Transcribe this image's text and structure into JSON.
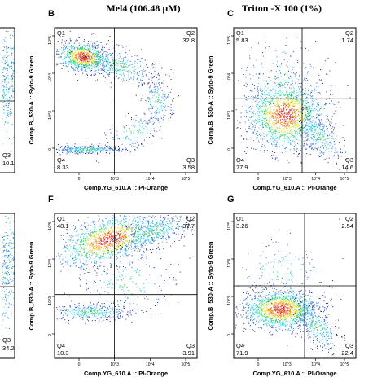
{
  "column_titles": [
    "Mel4  (106.48 µM)",
    "Triton -X 100 (1%)"
  ],
  "chart_data": [
    {
      "panel": "B",
      "type": "scatter",
      "xlabel": "Comp.YG_610.A :: PI-Orange",
      "ylabel": "Comp.B_530-A :: Syto-9 Green",
      "xlim": [
        "-10^3",
        "10^5"
      ],
      "ylim": [
        "-10^3",
        "10^5"
      ],
      "quadrants": {
        "Q1": "",
        "Q2": "32.8",
        "Q3": "3.58",
        "Q4": "8.33"
      },
      "yticks": [
        "10^5",
        "10^4",
        "10^3",
        "0"
      ],
      "xticks": [
        "0",
        "10^3",
        "10^4",
        "10^5"
      ]
    },
    {
      "panel": "C",
      "type": "scatter",
      "xlabel": "Comp.YG_610.A :: PI-Orange",
      "ylabel": "Comp.B_530-A :: Syto-9 Green",
      "xlim": [
        "-10^3",
        "10^5"
      ],
      "ylim": [
        "-10^3",
        "10^5"
      ],
      "quadrants": {
        "Q1": "5.83",
        "Q2": "1.74",
        "Q3": "14.6",
        "Q4": "77.9"
      },
      "yticks": [
        "10^5",
        "10^4",
        "10^3",
        "0"
      ],
      "xticks": [
        "0",
        "10^3",
        "10^4",
        "10^5"
      ]
    },
    {
      "panel": "F",
      "type": "scatter",
      "xlabel": "Comp.YG_610.A :: PI-Orange",
      "ylabel": "Comp.B_530-A :: Syto-9 Green",
      "xlim": [
        "-10^3",
        "10^5"
      ],
      "ylim": [
        "-10^3",
        "10^5"
      ],
      "quadrants": {
        "Q1": "48.1",
        "Q2": "37.7",
        "Q3": "3.91",
        "Q4": "10.3"
      },
      "yticks": [
        "10^5",
        "10^4",
        "10^3",
        "0"
      ],
      "xticks": [
        "0",
        "10^3",
        "10^4",
        "10^5"
      ]
    },
    {
      "panel": "G",
      "type": "scatter",
      "xlabel": "Comp.YG_610.A :: PI-Orange",
      "ylabel": "Comp.B_530-A :: Syto-9 Green",
      "xlim": [
        "-10^3",
        "10^5"
      ],
      "ylim": [
        "-10^3",
        "10^5"
      ],
      "quadrants": {
        "Q1": "3.26",
        "Q2": "2.54",
        "Q3": "22.4",
        "Q4": "71.9"
      },
      "yticks": [
        "10^5",
        "10^4",
        "10^3",
        "0"
      ],
      "xticks": [
        "0",
        "10^3",
        "10^4",
        "10^5"
      ]
    }
  ],
  "partial_left_column": {
    "quadrant_labels": [
      "Q3",
      "10.1",
      "Q3",
      "34.2"
    ]
  },
  "density_colors": [
    "#1a2a9a",
    "#2f78d8",
    "#36c9e6",
    "#3cd07a",
    "#e6e23a",
    "#f0892a",
    "#e02a1e"
  ]
}
